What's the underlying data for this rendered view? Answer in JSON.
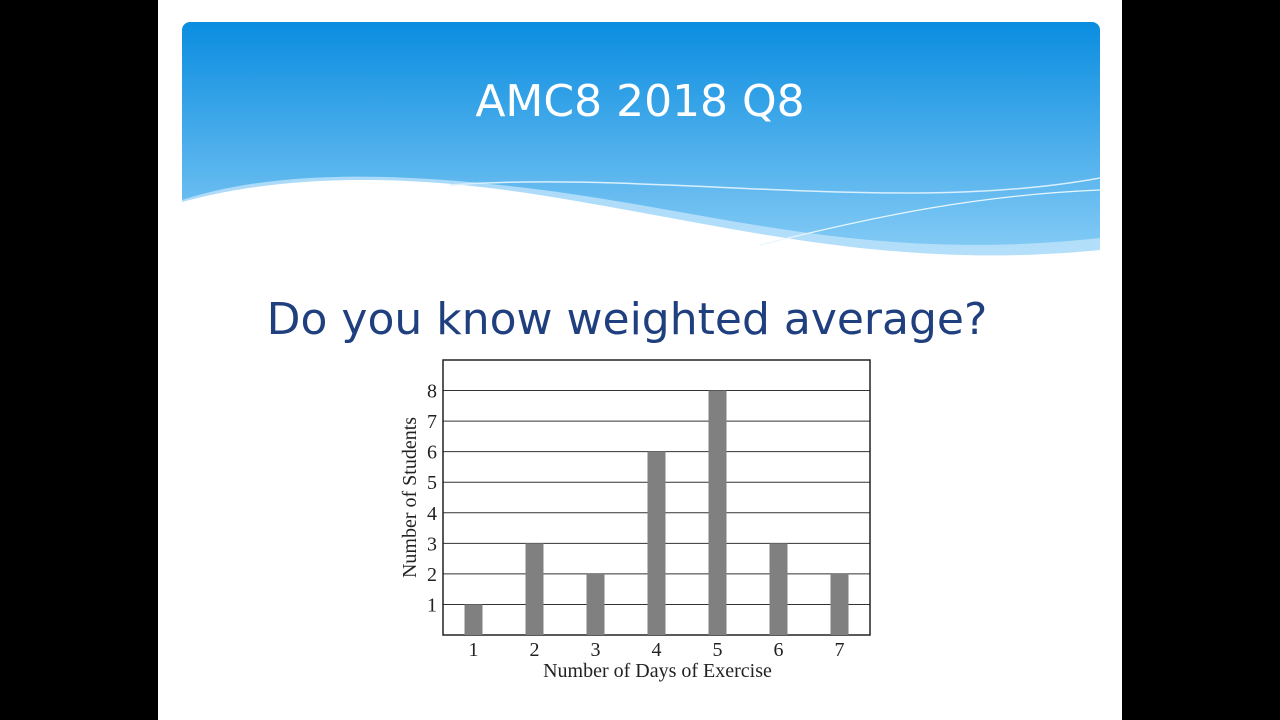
{
  "slide": {
    "title": "AMC8 2018 Q8",
    "heading": "Do you know weighted average?"
  },
  "chart_data": {
    "type": "bar",
    "categories": [
      "1",
      "2",
      "3",
      "4",
      "5",
      "6",
      "7"
    ],
    "values": [
      1,
      3,
      2,
      6,
      8,
      3,
      2
    ],
    "color": "#808080",
    "xlabel": "Number of Days of Exercise",
    "ylabel": "Number of Students",
    "ylim": [
      0,
      9
    ],
    "yticks": [
      1,
      2,
      3,
      4,
      5,
      6,
      7,
      8
    ],
    "grid": true
  }
}
